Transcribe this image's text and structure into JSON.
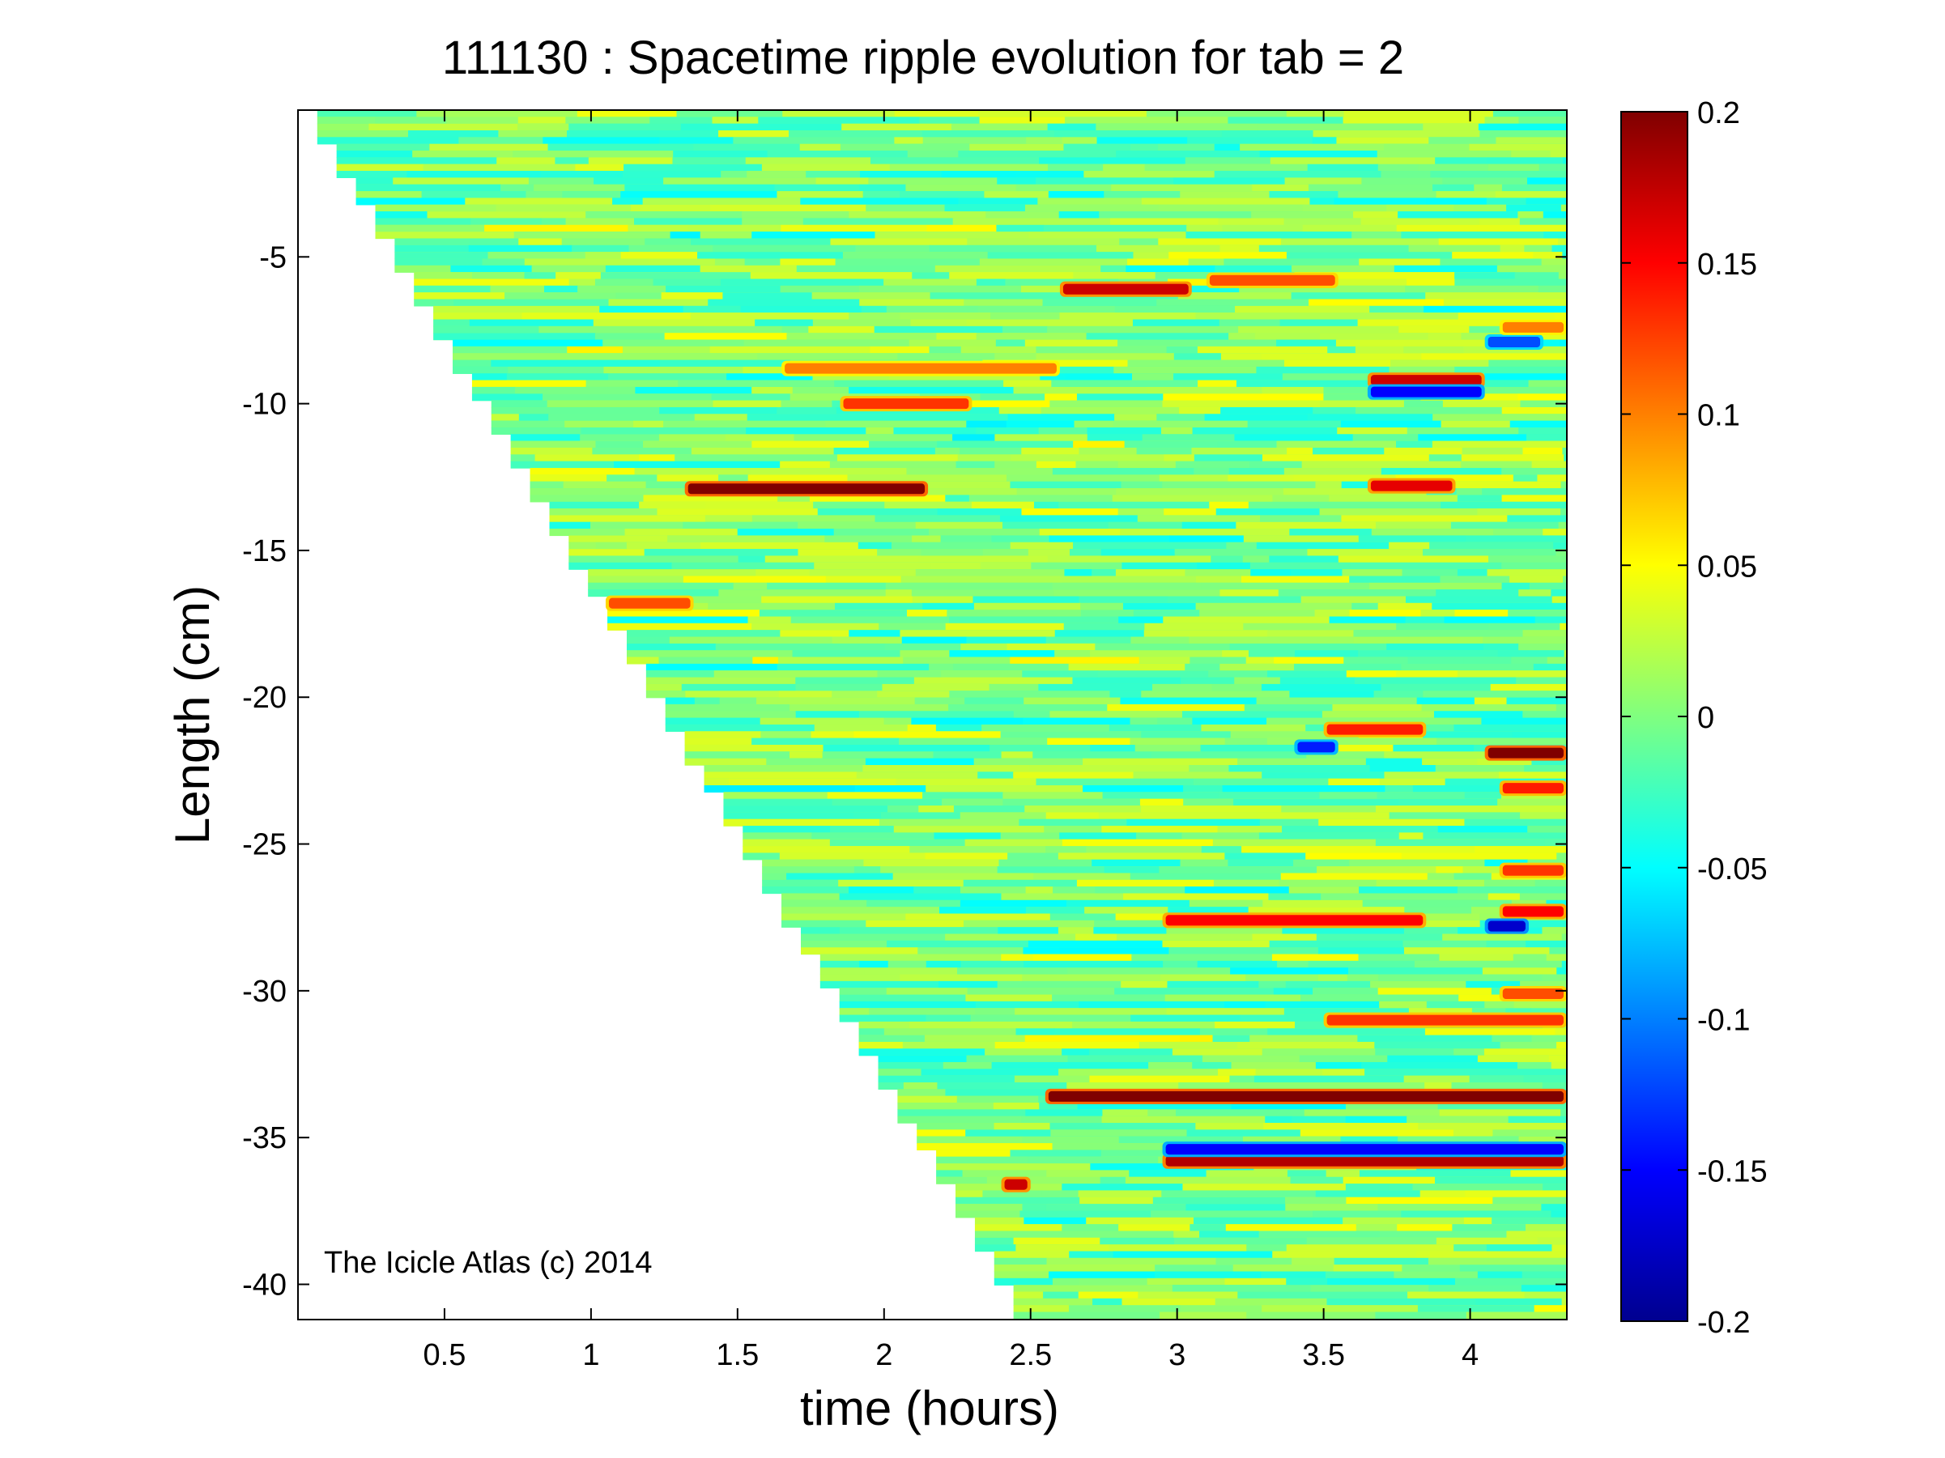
{
  "chart_data": {
    "type": "heatmap",
    "title": "111130 : Spacetime ripple evolution for tab = 2",
    "xlabel": "time (hours)",
    "ylabel": "Length (cm)",
    "xlim": [
      0.0,
      4.33
    ],
    "ylim": [
      -41.2,
      0.0
    ],
    "x_ticks": [
      0.5,
      1,
      1.5,
      2,
      2.5,
      3,
      3.5,
      4
    ],
    "x_tick_labels": [
      "0.5",
      "1",
      "1.5",
      "2",
      "2.5",
      "3",
      "3.5",
      "4"
    ],
    "y_ticks": [
      -5,
      -10,
      -15,
      -20,
      -25,
      -30,
      -35,
      -40
    ],
    "y_tick_labels": [
      "-5",
      "-10",
      "-15",
      "-20",
      "-25",
      "-30",
      "-35",
      "-40"
    ],
    "colorbar": {
      "colormap": "jet",
      "clim": [
        -0.2,
        0.2
      ],
      "ticks": [
        0.2,
        0.15,
        0.1,
        0.05,
        0,
        -0.05,
        -0.1,
        -0.15,
        -0.2
      ],
      "tick_labels": [
        "0.2",
        "0.15",
        "0.1",
        "0.05",
        "0",
        "-0.05",
        "-0.1",
        "-0.15",
        "-0.2"
      ]
    },
    "growth_front": {
      "start": [
        0.0,
        0.0
      ],
      "end": [
        2.45,
        -41.2
      ],
      "step_hours": 0.066
    },
    "features": [
      {
        "t_start": 1.32,
        "t_end": 2.15,
        "length": -12.9,
        "value": 0.2
      },
      {
        "t_start": 2.6,
        "t_end": 3.05,
        "length": -6.1,
        "value": 0.17
      },
      {
        "t_start": 3.1,
        "t_end": 3.55,
        "length": -5.8,
        "value": 0.12
      },
      {
        "t_start": 3.65,
        "t_end": 4.05,
        "length": -9.2,
        "value": 0.17
      },
      {
        "t_start": 3.65,
        "t_end": 4.05,
        "length": -9.6,
        "value": -0.15
      },
      {
        "t_start": 3.65,
        "t_end": 3.95,
        "length": -12.8,
        "value": 0.16
      },
      {
        "t_start": 1.85,
        "t_end": 2.3,
        "length": -10.0,
        "value": 0.13
      },
      {
        "t_start": 1.65,
        "t_end": 2.6,
        "length": -8.8,
        "value": 0.1
      },
      {
        "t_start": 2.55,
        "t_end": 4.33,
        "length": -33.6,
        "value": 0.2
      },
      {
        "t_start": 2.95,
        "t_end": 4.33,
        "length": -35.8,
        "value": 0.18
      },
      {
        "t_start": 2.95,
        "t_end": 4.33,
        "length": -35.4,
        "value": -0.15
      },
      {
        "t_start": 2.95,
        "t_end": 3.85,
        "length": -27.6,
        "value": 0.15
      },
      {
        "t_start": 3.5,
        "t_end": 4.33,
        "length": -31.0,
        "value": 0.13
      },
      {
        "t_start": 4.05,
        "t_end": 4.33,
        "length": -21.9,
        "value": 0.2
      },
      {
        "t_start": 3.5,
        "t_end": 3.85,
        "length": -21.1,
        "value": 0.14
      },
      {
        "t_start": 4.1,
        "t_end": 4.33,
        "length": -27.3,
        "value": 0.15
      },
      {
        "t_start": 4.1,
        "t_end": 4.33,
        "length": -25.9,
        "value": 0.13
      },
      {
        "t_start": 4.1,
        "t_end": 4.33,
        "length": -23.1,
        "value": 0.14
      },
      {
        "t_start": 4.1,
        "t_end": 4.33,
        "length": -30.1,
        "value": 0.12
      },
      {
        "t_start": 1.05,
        "t_end": 1.35,
        "length": -16.8,
        "value": 0.12
      },
      {
        "t_start": 2.4,
        "t_end": 2.5,
        "length": -36.6,
        "value": 0.17
      },
      {
        "t_start": 4.05,
        "t_end": 4.2,
        "length": -27.8,
        "value": -0.17
      },
      {
        "t_start": 4.05,
        "t_end": 4.25,
        "length": -7.9,
        "value": -0.12
      },
      {
        "t_start": 4.1,
        "t_end": 4.33,
        "length": -7.4,
        "value": 0.1
      },
      {
        "t_start": 3.4,
        "t_end": 3.55,
        "length": -21.7,
        "value": -0.14
      }
    ]
  },
  "watermark": "The Icicle Atlas (c) 2014"
}
